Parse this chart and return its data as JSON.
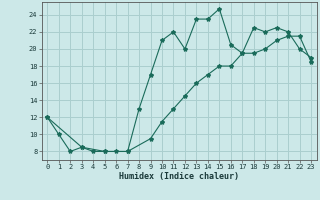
{
  "xlabel": "Humidex (Indice chaleur)",
  "xlim": [
    -0.5,
    23.5
  ],
  "ylim": [
    7,
    25.5
  ],
  "xticks": [
    0,
    1,
    2,
    3,
    4,
    5,
    6,
    7,
    8,
    9,
    10,
    11,
    12,
    13,
    14,
    15,
    16,
    17,
    18,
    19,
    20,
    21,
    22,
    23
  ],
  "yticks": [
    8,
    10,
    12,
    14,
    16,
    18,
    20,
    22,
    24
  ],
  "bg_color": "#cce8e8",
  "grid_color": "#aacece",
  "line_color": "#1a6b5a",
  "line1_x": [
    0,
    1,
    2,
    3,
    4,
    5,
    6,
    7,
    8,
    9,
    10,
    11,
    12,
    13,
    14,
    15,
    16,
    17,
    18,
    19,
    20,
    21,
    22,
    23
  ],
  "line1_y": [
    12,
    10,
    8,
    8.5,
    8,
    8,
    8,
    8,
    13,
    17,
    21,
    22,
    20,
    23.5,
    23.5,
    24.7,
    20.5,
    19.5,
    22.5,
    22,
    22.5,
    22,
    20,
    19
  ],
  "line2_x": [
    0,
    3,
    5,
    7,
    9,
    10,
    11,
    12,
    13,
    14,
    15,
    16,
    17,
    18,
    19,
    20,
    21,
    22,
    23
  ],
  "line2_y": [
    12,
    8.5,
    8,
    8,
    9.5,
    11.5,
    13,
    14.5,
    16,
    17,
    18,
    18,
    19.5,
    19.5,
    20,
    21,
    21.5,
    21.5,
    18.5
  ]
}
